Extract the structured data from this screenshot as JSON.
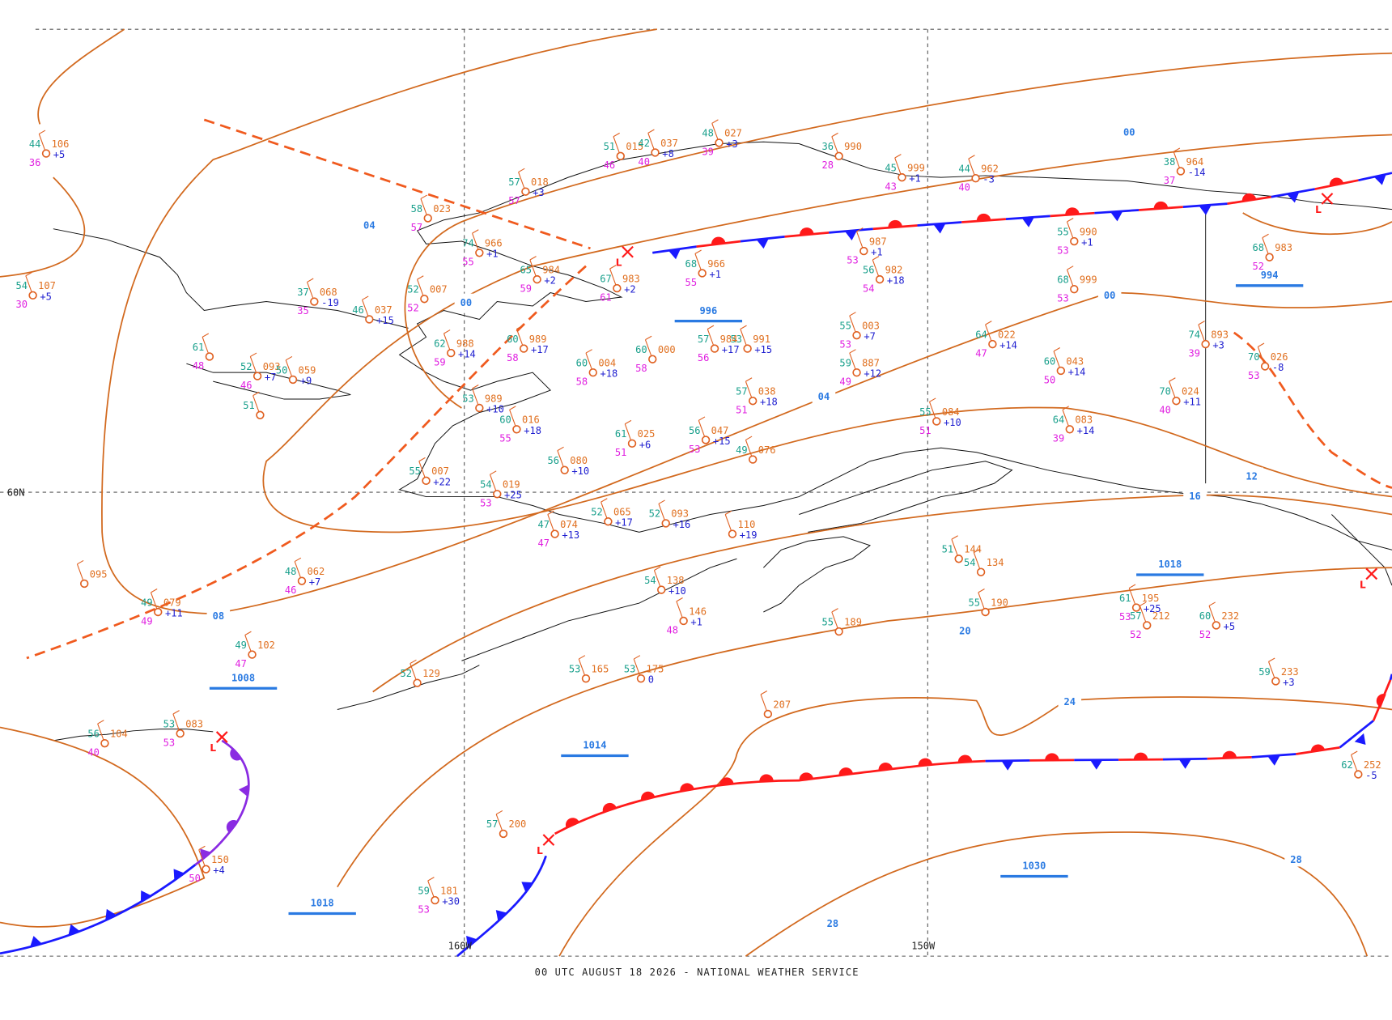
{
  "footer": "00 UTC AUGUST 18 2026 - NATIONAL WEATHER SERVICE",
  "grid_labels": [
    "60N",
    "160W",
    "150W"
  ],
  "isobar_labels": [
    "04",
    "00",
    "00",
    "00",
    "04",
    "08",
    "12",
    "16",
    "20",
    "24",
    "28",
    "28"
  ],
  "pressure_centers": [
    "996",
    "994",
    "1008",
    "1014",
    "1018",
    "1018",
    "1030"
  ],
  "lows": [
    "L",
    "L",
    "L",
    "L",
    "L"
  ],
  "stations": [
    {
      "t": "44",
      "p": "106",
      "tend": "+5",
      "d": "36"
    },
    {
      "t": "54",
      "p": "107",
      "tend": "+5",
      "d": "30"
    },
    {
      "t": "37",
      "p": "068",
      "tend": "-19",
      "d": "35"
    },
    {
      "t": "46",
      "p": "037",
      "tend": "+15"
    },
    {
      "t": "61",
      "d": "48"
    },
    {
      "t": "52",
      "p": "093",
      "tend": "+7",
      "d": "46"
    },
    {
      "t": "50",
      "p": "059",
      "tend": "+9"
    },
    {
      "t": "51"
    },
    {
      "t": "58",
      "p": "023",
      "d": "57"
    },
    {
      "t": "57",
      "p": "018",
      "tend": "+3",
      "d": "57"
    },
    {
      "t": "51",
      "p": "015",
      "d": "46"
    },
    {
      "t": "42",
      "p": "037",
      "tend": "+8",
      "d": "40"
    },
    {
      "t": "48",
      "p": "027",
      "tend": "+3",
      "d": "39"
    },
    {
      "t": "36",
      "p": "990",
      "d": "28"
    },
    {
      "t": "45",
      "p": "999",
      "tend": "+1",
      "d": "43"
    },
    {
      "t": "44",
      "p": "962",
      "tend": "-3",
      "d": "40"
    },
    {
      "t": "38",
      "p": "964",
      "tend": "-14",
      "d": "37"
    },
    {
      "p": "987",
      "tend": "+1",
      "d": "53"
    },
    {
      "t": "56",
      "p": "982",
      "tend": "+18",
      "d": "54"
    },
    {
      "t": "55",
      "p": "990",
      "tend": "+1",
      "d": "53"
    },
    {
      "t": "68",
      "p": "983",
      "d": "52"
    },
    {
      "t": "68",
      "p": "966",
      "tend": "+1",
      "d": "55"
    },
    {
      "t": "74",
      "p": "966",
      "tend": "+1",
      "d": "55"
    },
    {
      "t": "65",
      "p": "984",
      "tend": "+2",
      "d": "59"
    },
    {
      "t": "67",
      "p": "983",
      "tend": "+2",
      "d": "61"
    },
    {
      "t": "52",
      "p": "007",
      "d": "52"
    },
    {
      "t": "62",
      "p": "988",
      "tend": "+14",
      "d": "59"
    },
    {
      "t": "60",
      "p": "989",
      "tend": "+17",
      "d": "58"
    },
    {
      "t": "60",
      "p": "000",
      "d": "58"
    },
    {
      "t": "53",
      "p": "991",
      "tend": "+15"
    },
    {
      "t": "57",
      "p": "984",
      "tend": "+17",
      "d": "56"
    },
    {
      "t": "60",
      "p": "004",
      "tend": "+18",
      "d": "58"
    },
    {
      "t": "55",
      "p": "003",
      "tend": "+7",
      "d": "53"
    },
    {
      "t": "59",
      "p": "887",
      "tend": "+12",
      "d": "49"
    },
    {
      "t": "64",
      "p": "022",
      "tend": "+14",
      "d": "47"
    },
    {
      "t": "60",
      "p": "043",
      "tend": "+14",
      "d": "50"
    },
    {
      "t": "68",
      "p": "999",
      "d": "53"
    },
    {
      "t": "70",
      "p": "024",
      "tend": "+11",
      "d": "40"
    },
    {
      "t": "74",
      "p": "893",
      "tend": "+3",
      "d": "39"
    },
    {
      "t": "70",
      "p": "026",
      "tend": "-8",
      "d": "53"
    },
    {
      "t": "53",
      "p": "989",
      "tend": "+10"
    },
    {
      "t": "60",
      "p": "016",
      "tend": "+18",
      "d": "55"
    },
    {
      "t": "61",
      "p": "025",
      "tend": "+6",
      "d": "51"
    },
    {
      "t": "56",
      "p": "047",
      "tend": "+15",
      "d": "53"
    },
    {
      "t": "57",
      "p": "038",
      "tend": "+18",
      "d": "51"
    },
    {
      "t": "49",
      "p": "076"
    },
    {
      "t": "55",
      "p": "084",
      "tend": "+10",
      "d": "51"
    },
    {
      "t": "64",
      "p": "083",
      "tend": "+14",
      "d": "39"
    },
    {
      "t": "56",
      "p": "080",
      "tend": "+10"
    },
    {
      "t": "55",
      "p": "007",
      "tend": "+22"
    },
    {
      "t": "54",
      "p": "019",
      "tend": "+25",
      "d": "53"
    },
    {
      "t": "47",
      "p": "074",
      "tend": "+13",
      "d": "47"
    },
    {
      "t": "52",
      "p": "065",
      "tend": "+17"
    },
    {
      "t": "52",
      "p": "093",
      "tend": "+16"
    },
    {
      "p": "110",
      "tend": "+19"
    },
    {
      "t": "48",
      "p": "062",
      "tend": "+7",
      "d": "46"
    },
    {
      "p": "095"
    },
    {
      "t": "49",
      "p": "079",
      "tend": "+11",
      "d": "49"
    },
    {
      "t": "49",
      "p": "102",
      "d": "47"
    },
    {
      "t": "54",
      "p": "134"
    },
    {
      "t": "51",
      "p": "144"
    },
    {
      "t": "61",
      "p": "195",
      "tend": "+25",
      "d": "53"
    },
    {
      "t": "57",
      "p": "212",
      "d": "52"
    },
    {
      "t": "60",
      "p": "232",
      "tend": "+5",
      "d": "52"
    },
    {
      "t": "55",
      "p": "190"
    },
    {
      "t": "55",
      "p": "189"
    },
    {
      "p": "146",
      "tend": "+1",
      "d": "48"
    },
    {
      "t": "54",
      "p": "138",
      "tend": "+10"
    },
    {
      "t": "53",
      "p": "165"
    },
    {
      "t": "53",
      "p": "175",
      "tend": "0"
    },
    {
      "p": "207"
    },
    {
      "t": "52",
      "p": "129"
    },
    {
      "t": "59",
      "p": "233",
      "tend": "+3"
    },
    {
      "t": "57",
      "p": "200"
    },
    {
      "t": "59",
      "p": "181",
      "tend": "+30",
      "d": "53"
    },
    {
      "p": "150",
      "tend": "+4",
      "d": "50"
    },
    {
      "t": "56",
      "p": "104",
      "d": "40"
    },
    {
      "t": "53",
      "p": "083",
      "d": "53"
    },
    {
      "t": "62",
      "p": "252",
      "tend": "-5"
    }
  ]
}
